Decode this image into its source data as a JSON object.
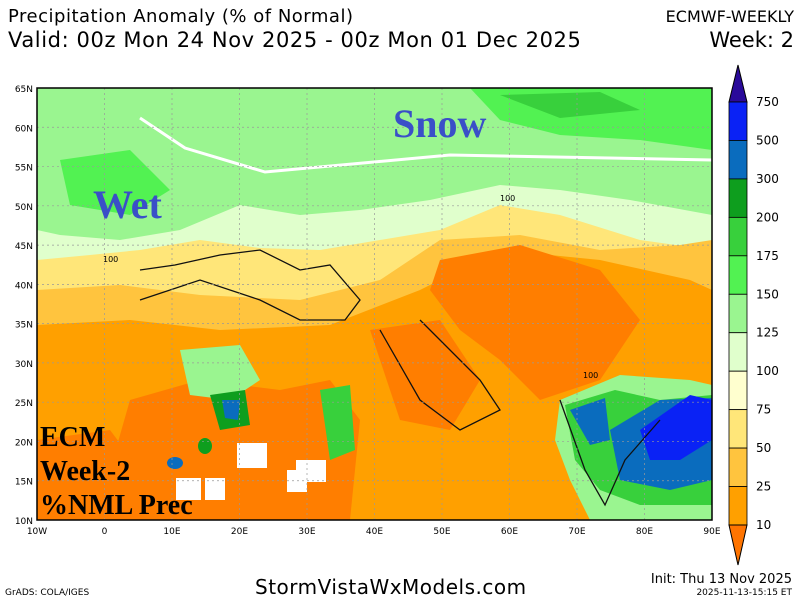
{
  "header": {
    "title": "Precipitation Anomaly (% of Normal)",
    "valid": "Valid: 00z Mon 24 Nov 2025 - 00z Mon 01 Dec 2025",
    "model": "ECMWF-WEEKLY",
    "week": "Week: 2"
  },
  "map": {
    "lat_labels": [
      "65N",
      "60N",
      "55N",
      "50N",
      "45N",
      "40N",
      "35N",
      "30N",
      "25N",
      "20N",
      "15N",
      "10N"
    ],
    "lon_labels": [
      "10W",
      "0",
      "10E",
      "20E",
      "30E",
      "40E",
      "50E",
      "60E",
      "70E",
      "80E",
      "90E"
    ],
    "annotations": {
      "snow": "Snow",
      "wet": "Wet",
      "ecm_line1": "ECM",
      "ecm_line2": "Week-2",
      "ecm_line3": "%NML Prec"
    },
    "contour_label": "100",
    "annotation_color": "#3a4fc8"
  },
  "colorbar": {
    "levels": [
      "750",
      "500",
      "300",
      "200",
      "175",
      "150",
      "125",
      "100",
      "75",
      "50",
      "25",
      "10"
    ],
    "colors": [
      "#2a0a9a",
      "#0a22f5",
      "#0a6cbe",
      "#0e9e1e",
      "#38d03c",
      "#52f252",
      "#9af590",
      "#e0ffcc",
      "#ffffcf",
      "#ffe679",
      "#ffc43e",
      "#ffa000",
      "#ff7400"
    ]
  },
  "footer": {
    "grads": "GrADS: COLA/IGES",
    "site": "StormVistaWxModels.com",
    "init": "Init: Thu 13 Nov 2025",
    "stamp": "2025-11-13-15:15 ET"
  }
}
